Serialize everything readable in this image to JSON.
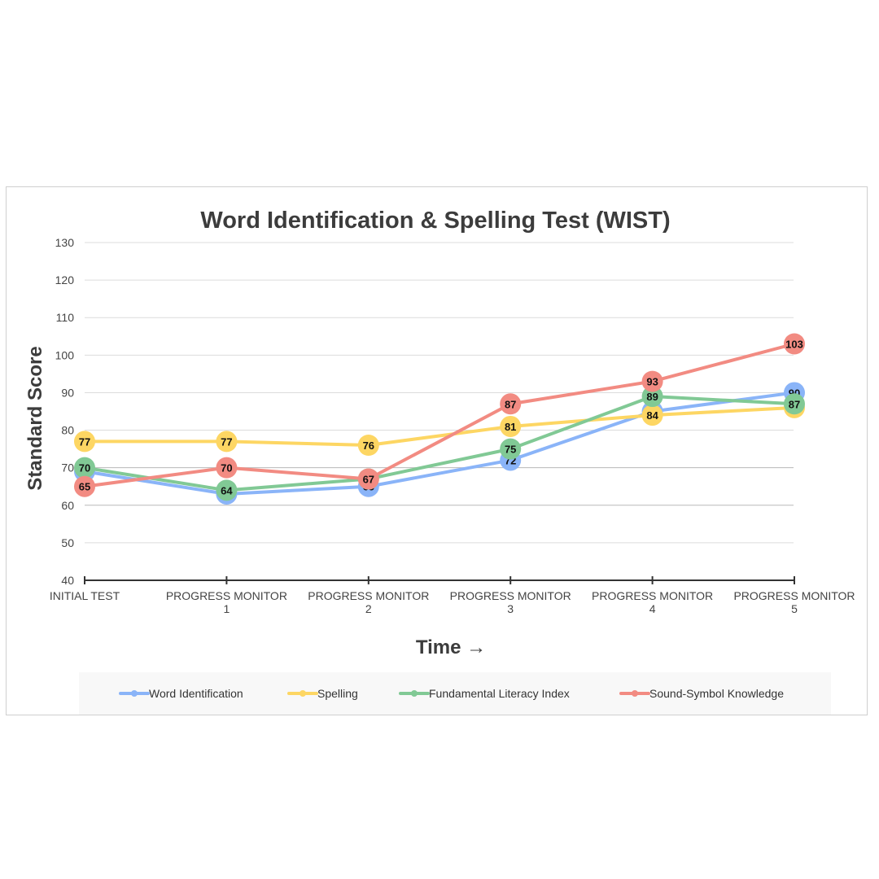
{
  "chart_data": {
    "type": "line",
    "title": "Word Identification & Spelling Test (WIST)",
    "xlabel": "Time →",
    "ylabel": "Standard Score",
    "ylim": [
      40,
      130
    ],
    "yticks": [
      40,
      50,
      60,
      70,
      80,
      90,
      100,
      110,
      120,
      130
    ],
    "categories": [
      [
        "INITIAL TEST"
      ],
      [
        "PROGRESS MONITOR",
        "1"
      ],
      [
        "PROGRESS MONITOR",
        "2"
      ],
      [
        "PROGRESS MONITOR",
        "3"
      ],
      [
        "PROGRESS MONITOR",
        "4"
      ],
      [
        "PROGRESS MONITOR",
        "5"
      ]
    ],
    "grid": true,
    "legend_position": "bottom",
    "series": [
      {
        "name": "Word Identification",
        "color": "#8ab4f8",
        "values": [
          69,
          63,
          65,
          72,
          85,
          90
        ]
      },
      {
        "name": "Spelling",
        "color": "#fdd663",
        "values": [
          77,
          77,
          76,
          81,
          84,
          86
        ]
      },
      {
        "name": "Fundamental Literacy Index",
        "color": "#81c995",
        "values": [
          70,
          64,
          67,
          75,
          89,
          87
        ]
      },
      {
        "name": "Sound-Symbol Knowledge",
        "color": "#f28b82",
        "values": [
          65,
          70,
          67,
          87,
          93,
          103
        ]
      }
    ]
  }
}
